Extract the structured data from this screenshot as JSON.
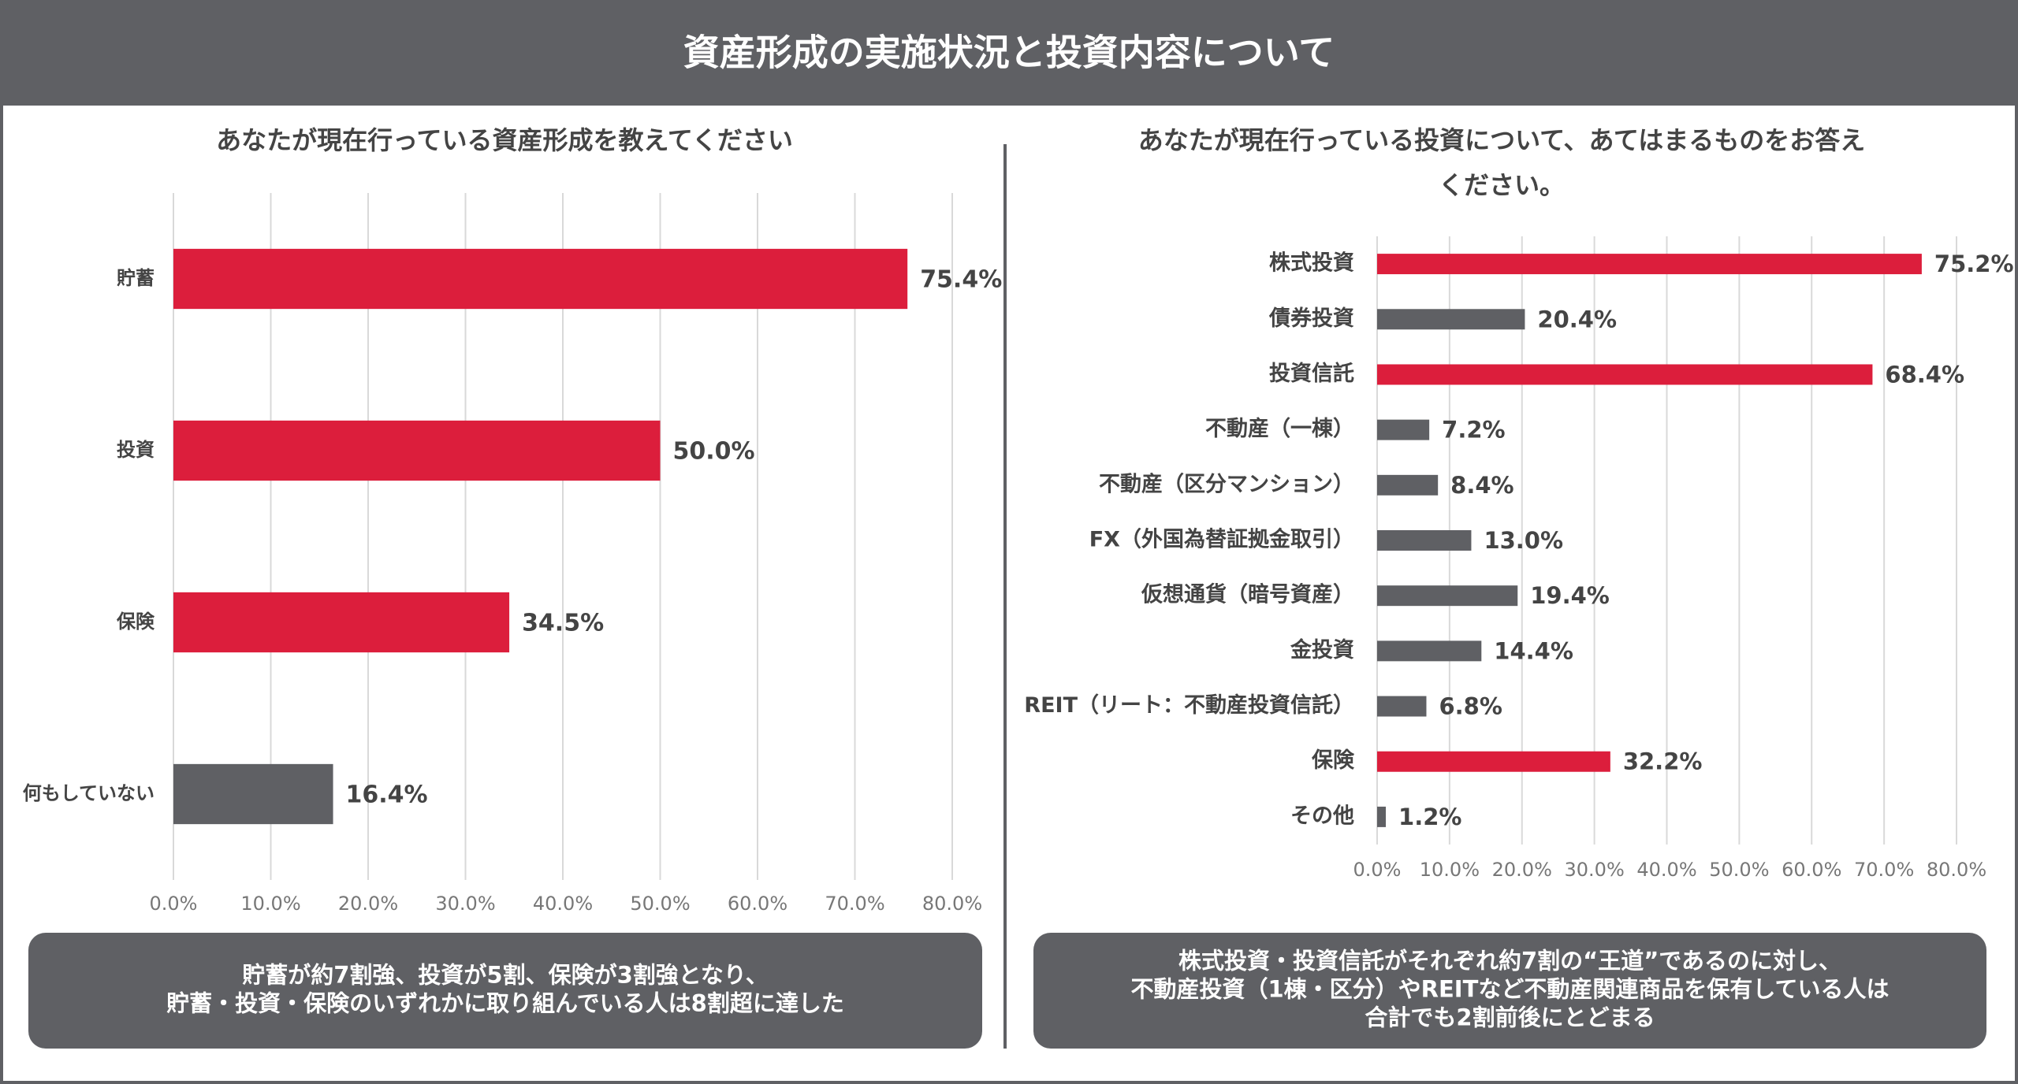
{
  "header": {
    "title": "資産形成の実施状況と投資内容について"
  },
  "chart_data": [
    {
      "type": "hbar",
      "title": [
        "あなたが現在行っている資産形成を教えてください"
      ],
      "categories": [
        "貯蓄",
        "投資",
        "保険",
        "何もしていない"
      ],
      "values": [
        75.4,
        50.0,
        34.5,
        16.4
      ],
      "value_labels": [
        "75.4%",
        "50.0%",
        "34.5%",
        "16.4%"
      ],
      "colors": [
        "#dc1e3c",
        "#dc1e3c",
        "#dc1e3c",
        "#5f6064"
      ],
      "xlim": [
        0,
        80
      ],
      "xticks": [
        {
          "value": 0,
          "label": "0.0%"
        },
        {
          "value": 10,
          "label": "10.0%"
        },
        {
          "value": 20,
          "label": "20.0%"
        },
        {
          "value": 30,
          "label": "30.0%"
        },
        {
          "value": 40,
          "label": "40.0%"
        },
        {
          "value": 50,
          "label": "50.0%"
        },
        {
          "value": 60,
          "label": "60.0%"
        },
        {
          "value": 70,
          "label": "70.0%"
        },
        {
          "value": 80,
          "label": "80.0%"
        }
      ],
      "grid": true,
      "caption": [
        "貯蓄が約7割強、投資が5割、保険が3割強となり、",
        "貯蓄・投資・保険のいずれかに取り組んでいる人は8割超に達した"
      ]
    },
    {
      "type": "hbar",
      "title": [
        "あなたが現在行っている投資について、あてはまるものをお答え",
        "ください。"
      ],
      "categories": [
        "株式投資",
        "債券投資",
        "投資信託",
        "不動産（一棟）",
        "不動産（区分マンション）",
        "FX（外国為替証拠金取引）",
        "仮想通貨（暗号資産）",
        "金投資",
        "REIT（リート：不動産投資信託）",
        "保険",
        "その他"
      ],
      "values": [
        75.2,
        20.4,
        68.4,
        7.2,
        8.4,
        13.0,
        19.4,
        14.4,
        6.8,
        32.2,
        1.2
      ],
      "value_labels": [
        "75.2%",
        "20.4%",
        "68.4%",
        "7.2%",
        "8.4%",
        "13.0%",
        "19.4%",
        "14.4%",
        "6.8%",
        "32.2%",
        "1.2%"
      ],
      "colors": [
        "#dc1e3c",
        "#5f6064",
        "#dc1e3c",
        "#5f6064",
        "#5f6064",
        "#5f6064",
        "#5f6064",
        "#5f6064",
        "#5f6064",
        "#dc1e3c",
        "#5f6064"
      ],
      "xlim": [
        0,
        80
      ],
      "xticks": [
        {
          "value": 0,
          "label": "0.0%"
        },
        {
          "value": 10,
          "label": "10.0%"
        },
        {
          "value": 20,
          "label": "20.0%"
        },
        {
          "value": 30,
          "label": "30.0%"
        },
        {
          "value": 40,
          "label": "40.0%"
        },
        {
          "value": 50,
          "label": "50.0%"
        },
        {
          "value": 60,
          "label": "60.0%"
        },
        {
          "value": 70,
          "label": "70.0%"
        },
        {
          "value": 80,
          "label": "80.0%"
        }
      ],
      "grid": true,
      "caption": [
        "株式投資・投資信託がそれぞれ約7割の“王道”であるのに対し、",
        "不動産投資（1棟・区分）やREITなど不動産関連商品を保有している人は",
        "合計でも2割前後にとどまる"
      ]
    }
  ]
}
